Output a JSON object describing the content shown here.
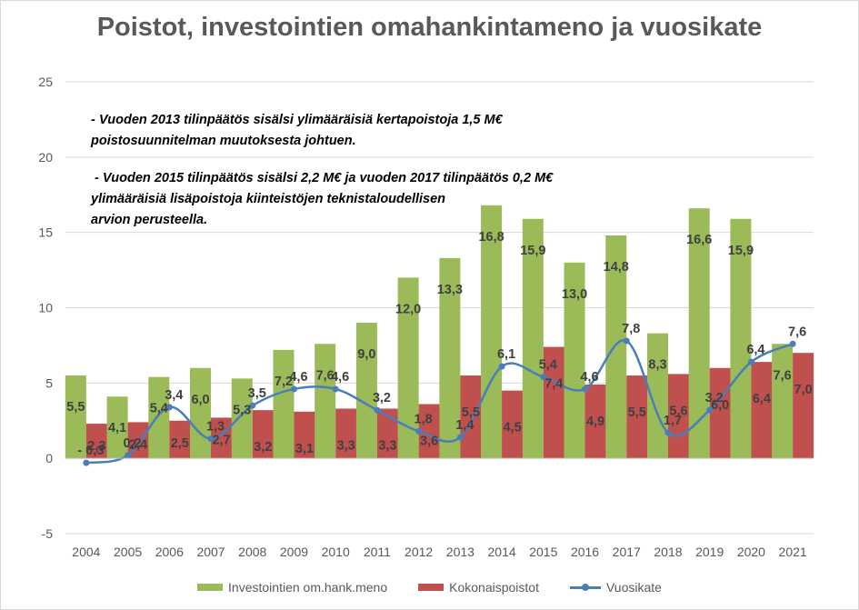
{
  "title": "Poistot, investointien omahankintameno ja vuosikate",
  "annotations": [
    "- Vuoden 2013 tilinpäätös sisälsi ylimääräisiä kertapoistoja 1,5 M€\npoistosuunnitelman muutoksesta johtuen.",
    " - Vuoden 2015 tilinpäätös sisälsi 2,2 M€ ja vuoden 2017 tilinpäätös 0,2 M€\nylimääräisiä lisäpoistoja kiinteistöjen teknistaloudellisen\narvion perusteella."
  ],
  "colors": {
    "investments": "#9bbb59",
    "depreciation": "#c0504d",
    "margin": "#4a7ebb",
    "grid": "#d9d9d9",
    "text": "#595959"
  },
  "chart_data": {
    "type": "bar",
    "title": "Poistot, investointien omahankintameno ja vuosikate",
    "categories": [
      "2004",
      "2005",
      "2006",
      "2007",
      "2008",
      "2009",
      "2010",
      "2011",
      "2012",
      "2013",
      "2014",
      "2015",
      "2016",
      "2017",
      "2018",
      "2019",
      "2020",
      "2021"
    ],
    "ylim": [
      -5,
      25
    ],
    "yticks": [
      -5,
      0,
      5,
      10,
      15,
      20,
      25
    ],
    "grid": true,
    "legend_position": "bottom",
    "series": [
      {
        "name": "Investointien om.hank.meno",
        "kind": "bar",
        "values": [
          5.5,
          4.1,
          5.4,
          6.0,
          5.3,
          7.2,
          7.6,
          9.0,
          12.0,
          13.3,
          16.8,
          15.9,
          13.0,
          14.8,
          8.3,
          16.6,
          15.9,
          7.6
        ],
        "labels": [
          "5,5",
          "4,1",
          "5,4",
          "6,0",
          "5,3",
          "7,2",
          "7,6",
          "9,0",
          "12,0",
          "13,3",
          "16,8",
          "15,9",
          "13,0",
          "14,8",
          "8,3",
          "16,6",
          "15,9",
          "7,6"
        ]
      },
      {
        "name": "Kokonaispoistot",
        "kind": "bar",
        "values": [
          2.3,
          2.4,
          2.5,
          2.7,
          3.2,
          3.1,
          3.3,
          3.3,
          3.6,
          5.5,
          4.5,
          7.4,
          4.9,
          5.5,
          5.6,
          6.0,
          6.4,
          7.0
        ],
        "labels": [
          "2,3",
          "2,4",
          "2,5",
          "2,7",
          "3,2",
          "3,1",
          "3,3",
          "3,3",
          "3,6",
          "5,5",
          "4,5",
          "7,4",
          "4,9",
          "5,5",
          "5,6",
          "6,0",
          "6,4",
          "7,0"
        ]
      },
      {
        "name": "Vuosikate",
        "kind": "line",
        "values": [
          -0.3,
          0.2,
          3.4,
          1.3,
          3.5,
          4.6,
          4.6,
          3.2,
          1.8,
          1.4,
          6.1,
          5.4,
          4.6,
          7.8,
          1.7,
          3.2,
          6.4,
          7.6
        ],
        "labels": [
          "- 0,3",
          "0,2",
          "3,4",
          "1,3",
          "3,5",
          "4,6",
          "4,6",
          "3,2",
          "1,8",
          "1,4",
          "6,1",
          "5,4",
          "4,6",
          "7,8",
          "1,7",
          "3,2",
          "6,4",
          "7,6"
        ]
      }
    ]
  }
}
